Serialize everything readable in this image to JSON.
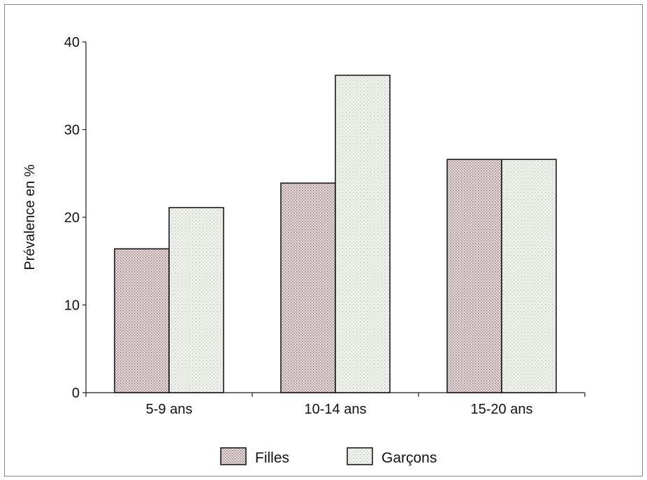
{
  "chart_data": {
    "type": "bar",
    "categories": [
      "5-9 ans",
      "10-14 ans",
      "15-20 ans"
    ],
    "series": [
      {
        "name": "Filles",
        "values": [
          16.4,
          23.9,
          26.6
        ],
        "color": "#d6c3c6",
        "pattern": "dots-dense"
      },
      {
        "name": "Garçons",
        "values": [
          21.1,
          36.2,
          26.6
        ],
        "color": "#e2e7df",
        "pattern": "dots-light"
      }
    ],
    "ylabel": "Prévalence en %",
    "xlabel": "",
    "ylim": [
      0,
      40
    ],
    "yticks": [
      0,
      10,
      20,
      30,
      40
    ],
    "ytick_labels": [
      "0",
      "10",
      "20",
      "30",
      "40"
    ],
    "grid": false,
    "legend_position": "bottom-center"
  }
}
